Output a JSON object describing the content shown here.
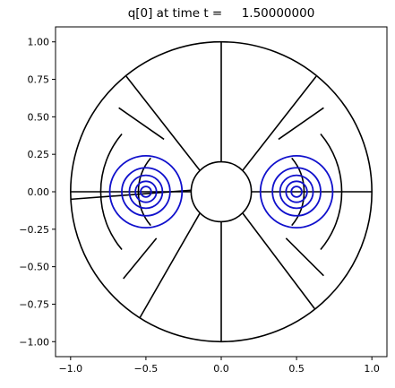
{
  "chart_data": {
    "type": "contour",
    "title": "q[0] at time t =     1.50000000",
    "xlabel": "",
    "ylabel": "",
    "xlim": [
      -1.1,
      1.1
    ],
    "ylim": [
      -1.1,
      1.1
    ],
    "x_ticks": [
      -1.0,
      -0.5,
      0.0,
      0.5,
      1.0
    ],
    "x_tick_labels": [
      "−1.0",
      "−0.5",
      "0.0",
      "0.5",
      "1.0"
    ],
    "y_ticks": [
      1.0,
      0.75,
      0.5,
      0.25,
      0.0,
      -0.25,
      -0.5,
      -0.75,
      -1.0
    ],
    "y_tick_labels": [
      "1.00",
      "0.75",
      "0.50",
      "0.25",
      "0.00",
      "−0.25",
      "−0.50",
      "−0.75",
      "−1.00"
    ],
    "grid": false,
    "aspect": "equal",
    "mesh": {
      "color": "#000000",
      "outer_radius": 1.0,
      "inner_radius": 0.2,
      "radial_lines": [
        {
          "from": [
            0.0,
            0.2
          ],
          "to": [
            0.0,
            1.0
          ]
        },
        {
          "from": [
            0.0,
            -0.2
          ],
          "to": [
            0.0,
            -1.0
          ]
        },
        {
          "from": [
            -0.2,
            0.0
          ],
          "to": [
            -1.0,
            0.0
          ]
        },
        {
          "from": [
            0.2,
            0.0
          ],
          "to": [
            1.0,
            0.0
          ]
        },
        {
          "from": [
            -0.2,
            0.01
          ],
          "to": [
            -1.0,
            -0.05
          ]
        },
        {
          "from": [
            -0.14,
            0.14
          ],
          "to": [
            -0.63,
            0.77
          ]
        },
        {
          "from": [
            0.14,
            0.14
          ],
          "to": [
            0.63,
            0.77
          ]
        },
        {
          "from": [
            -0.14,
            -0.14
          ],
          "to": [
            -0.54,
            -0.84
          ]
        },
        {
          "from": [
            0.14,
            -0.14
          ],
          "to": [
            0.62,
            -0.78
          ]
        }
      ],
      "blocks": [
        {
          "center": [
            -0.2,
            0.0
          ],
          "r_in": 0.35,
          "r_out": 0.6,
          "theta_deg": [
            140,
            220
          ]
        },
        {
          "center": [
            0.2,
            0.0
          ],
          "r_in": 0.35,
          "r_out": 0.6,
          "theta_deg": [
            -40,
            40
          ]
        }
      ],
      "block_rays": [
        {
          "from": [
            -0.38,
            0.35
          ],
          "to": [
            -0.68,
            0.56
          ]
        },
        {
          "from": [
            -0.43,
            -0.31
          ],
          "to": [
            -0.65,
            -0.58
          ]
        },
        {
          "from": [
            0.38,
            0.35
          ],
          "to": [
            0.68,
            0.56
          ]
        },
        {
          "from": [
            0.43,
            -0.31
          ],
          "to": [
            0.68,
            -0.56
          ]
        }
      ]
    },
    "contours": {
      "color": "#1010cc",
      "centers": [
        [
          -0.5,
          0.0
        ],
        [
          0.5,
          0.0
        ]
      ],
      "radii": [
        0.035,
        0.07,
        0.11,
        0.16,
        0.24
      ]
    }
  }
}
